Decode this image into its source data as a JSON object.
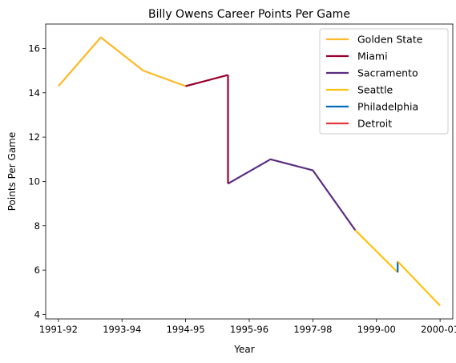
{
  "chart_data": {
    "type": "line",
    "title": "Billy Owens Career Points Per Game",
    "xlabel": "Year",
    "ylabel": "Points Per Game",
    "x_ticks": [
      "1991-92",
      "1993-94",
      "1994-95",
      "1995-96",
      "1997-98",
      "1999-00",
      "2000-01"
    ],
    "y_ticks": [
      4,
      6,
      8,
      10,
      12,
      14,
      16
    ],
    "xlim": [
      -0.3,
      9.3
    ],
    "ylim": [
      3.8,
      17.1
    ],
    "grid": false,
    "legend_position": "top-right",
    "series": [
      {
        "name": "Golden State",
        "color": "#FDB927",
        "points": [
          [
            0,
            14.3
          ],
          [
            1,
            16.5
          ],
          [
            2,
            15.0
          ],
          [
            3,
            14.3
          ]
        ]
      },
      {
        "name": "Miami",
        "color": "#98002E",
        "points": [
          [
            3,
            14.3
          ],
          [
            4,
            14.8
          ]
        ]
      },
      {
        "name": "Sacramento",
        "color": "#5A2D81",
        "points": [
          [
            4,
            9.9
          ],
          [
            5,
            11.0
          ],
          [
            6,
            10.5
          ],
          [
            7,
            7.8
          ]
        ]
      },
      {
        "name": "Seattle",
        "color": "#FFC20E",
        "points": [
          [
            7,
            7.8
          ],
          [
            8,
            5.9
          ]
        ]
      },
      {
        "name": "Philadelphia",
        "color": "#006BB6",
        "points": [
          [
            8,
            5.9
          ],
          [
            8,
            6.4
          ]
        ]
      },
      {
        "name": "Seattle",
        "color": "#FFC20E",
        "points": [
          [
            8,
            6.4
          ],
          [
            9,
            4.4
          ]
        ]
      },
      {
        "name": "Detroit",
        "color": "#C8102E",
        "points": []
      }
    ],
    "connectors": [
      {
        "color": "#98002E",
        "points": [
          [
            4,
            14.8
          ],
          [
            4,
            9.9
          ]
        ]
      }
    ],
    "legend": [
      {
        "label": "Golden State",
        "color": "#FDB927"
      },
      {
        "label": "Miami",
        "color": "#98002E"
      },
      {
        "label": "Sacramento",
        "color": "#5A2D81"
      },
      {
        "label": "Seattle",
        "color": "#FFC20E"
      },
      {
        "label": "Philadelphia",
        "color": "#006BB6"
      },
      {
        "label": "Detroit",
        "color": "#E03A3E"
      }
    ]
  }
}
